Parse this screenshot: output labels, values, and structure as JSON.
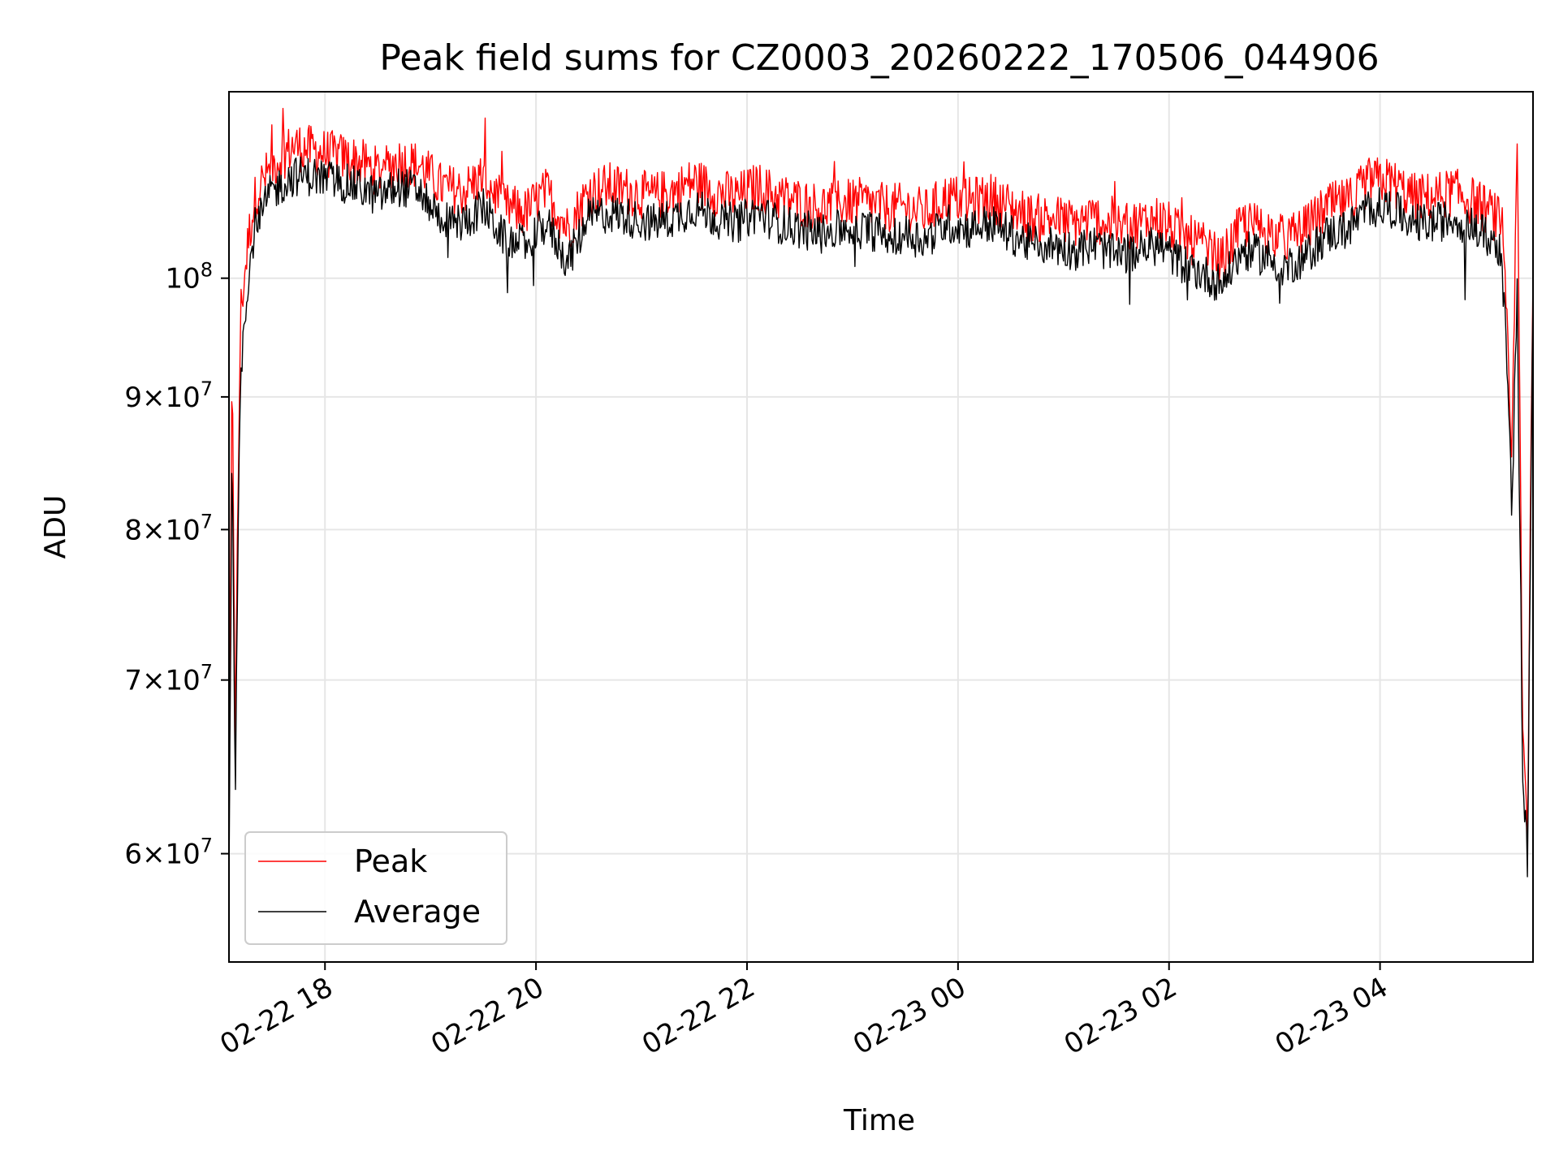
{
  "chart_data": {
    "type": "line",
    "title": "Peak field sums for CZ0003_20260222_170506_044906",
    "xlabel": "Time",
    "ylabel": "ADU",
    "yscale": "log",
    "ylim": [
      54500000,
      118000000
    ],
    "xlim_hours": [
      17.09,
      29.45
    ],
    "x_ticks": [
      {
        "hour": 18,
        "label": "02-22 18"
      },
      {
        "hour": 20,
        "label": "02-22 20"
      },
      {
        "hour": 22,
        "label": "02-22 22"
      },
      {
        "hour": 24,
        "label": "02-23 00"
      },
      {
        "hour": 26,
        "label": "02-23 02"
      },
      {
        "hour": 28,
        "label": "02-23 04"
      }
    ],
    "y_ticks": [
      {
        "value": 60000000,
        "mant": "6",
        "exp": "7"
      },
      {
        "value": 70000000,
        "mant": "7",
        "exp": "7"
      },
      {
        "value": 80000000,
        "mant": "8",
        "exp": "7"
      },
      {
        "value": 90000000,
        "mant": "9",
        "exp": "7"
      },
      {
        "value": 100000000,
        "mant": "",
        "exp": "8"
      }
    ],
    "grid": true,
    "legend_position": "lower-left",
    "series": [
      {
        "name": "Peak",
        "color": "#ff0000",
        "x": [
          17.09,
          17.12,
          17.15,
          17.2,
          17.28,
          17.35,
          17.5,
          17.7,
          17.9,
          18.1,
          18.3,
          18.5,
          18.7,
          18.9,
          19.1,
          19.3,
          19.5,
          19.7,
          19.9,
          20.1,
          20.3,
          20.5,
          20.7,
          20.9,
          21.1,
          21.3,
          21.5,
          21.7,
          21.9,
          22.1,
          22.3,
          22.5,
          22.7,
          22.9,
          23.1,
          23.3,
          23.5,
          23.7,
          23.9,
          24.1,
          24.3,
          24.5,
          24.7,
          24.9,
          25.1,
          25.3,
          25.5,
          25.7,
          25.9,
          26.1,
          26.3,
          26.5,
          26.7,
          26.9,
          27.1,
          27.3,
          27.5,
          27.7,
          27.9,
          28.1,
          28.3,
          28.5,
          28.7,
          28.9,
          29.05,
          29.15,
          29.2,
          29.25,
          29.3,
          29.35,
          29.4,
          29.45
        ],
        "values": [
          59000000,
          92000000,
          66000000,
          97000000,
          104000000,
          108000000,
          110500000,
          112500000,
          112000000,
          111500000,
          111000000,
          110000000,
          111000000,
          110500000,
          108500000,
          108000000,
          109500000,
          106500000,
          106000000,
          108000000,
          104500000,
          108000000,
          108500000,
          108000000,
          107500000,
          108000000,
          109000000,
          108000000,
          107500000,
          108500000,
          107500000,
          107000000,
          106500000,
          107000000,
          107000000,
          106500000,
          106500000,
          106000000,
          107500000,
          107000000,
          107500000,
          106500000,
          105500000,
          105500000,
          105000000,
          105500000,
          104500000,
          105000000,
          105500000,
          104000000,
          103000000,
          101500000,
          105000000,
          104500000,
          103500000,
          104500000,
          106500000,
          107000000,
          109000000,
          109000000,
          107500000,
          107500000,
          108000000,
          107000000,
          106000000,
          105000000,
          96000000,
          84000000,
          112000000,
          67000000,
          61000000,
          102000000
        ]
      },
      {
        "name": "Average",
        "color": "#000000",
        "x": [
          17.09,
          17.12,
          17.15,
          17.2,
          17.28,
          17.35,
          17.5,
          17.7,
          17.9,
          18.1,
          18.3,
          18.5,
          18.7,
          18.9,
          19.1,
          19.3,
          19.5,
          19.7,
          19.9,
          20.1,
          20.3,
          20.5,
          20.7,
          20.9,
          21.1,
          21.3,
          21.5,
          21.7,
          21.9,
          22.1,
          22.3,
          22.5,
          22.7,
          22.9,
          23.1,
          23.3,
          23.5,
          23.7,
          23.9,
          24.1,
          24.3,
          24.5,
          24.7,
          24.9,
          25.1,
          25.3,
          25.5,
          25.7,
          25.9,
          26.1,
          26.3,
          26.5,
          26.7,
          26.9,
          27.1,
          27.3,
          27.5,
          27.7,
          27.9,
          28.1,
          28.3,
          28.5,
          28.7,
          28.9,
          29.05,
          29.15,
          29.2,
          29.25,
          29.3,
          29.35,
          29.4,
          29.45
        ],
        "values": [
          57500000,
          86000000,
          63000000,
          92000000,
          101000000,
          105500000,
          108000000,
          109500000,
          109500000,
          109000000,
          108500000,
          107500000,
          108500000,
          108000000,
          105500000,
          105000000,
          106500000,
          103500000,
          103000000,
          105000000,
          101500000,
          105500000,
          106000000,
          105500000,
          105000000,
          105500000,
          106500000,
          105500000,
          105000000,
          106000000,
          105000000,
          104500000,
          104000000,
          104500000,
          104500000,
          104000000,
          104000000,
          103500000,
          105000000,
          104500000,
          105000000,
          104000000,
          103000000,
          103000000,
          102500000,
          103000000,
          102000000,
          102500000,
          103000000,
          101500000,
          100500000,
          99500000,
          102500000,
          102000000,
          101000000,
          102000000,
          104000000,
          104500000,
          106500000,
          106500000,
          105000000,
          105000000,
          105500000,
          104500000,
          103500000,
          102500000,
          93000000,
          81000000,
          99000000,
          64000000,
          59500000,
          99000000
        ]
      }
    ]
  }
}
